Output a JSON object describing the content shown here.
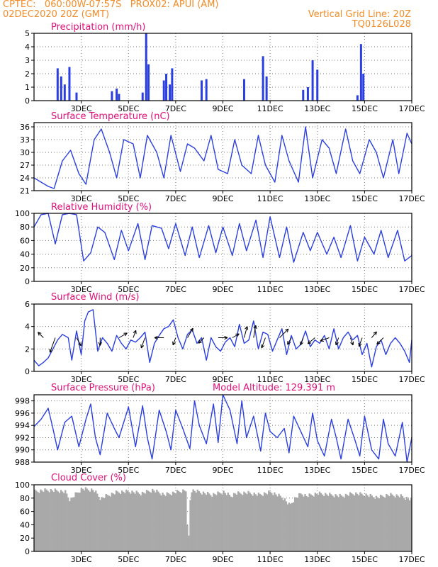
{
  "header": {
    "line1": "CPTEC:   060:00W-07:57S   PROX02: APUI (AM)",
    "line2": "02DEC2020 20Z (GMT)",
    "grid_note": "Vertical Grid Line: 20Z",
    "run_code": "TQ0126L028"
  },
  "colors": {
    "header": "#f28c28",
    "title": "#e0107a",
    "line": "#2b3fe0",
    "bar": "#2b3fe0",
    "cloud": "#a9a9a9",
    "frame": "#000000"
  },
  "x_ticks": [
    "3DEC",
    "5DEC",
    "7DEC",
    "9DEC",
    "11DEC",
    "13DEC",
    "15DEC",
    "17DEC"
  ],
  "chart_data": [
    {
      "type": "bar",
      "title": "Precipitation (mm/h)",
      "ylim": [
        0,
        5
      ],
      "yticks": [
        "0",
        "1",
        "2",
        "3",
        "4",
        "5"
      ],
      "x_days": [
        2.0,
        2.15,
        2.3,
        2.5,
        2.8,
        4.3,
        4.5,
        4.6,
        5.6,
        5.75,
        5.85,
        6.5,
        6.6,
        6.75,
        6.85,
        8.1,
        8.3,
        9.9,
        10.7,
        10.85,
        12.4,
        12.6,
        12.8,
        13.0,
        14.7,
        14.85,
        14.95
      ],
      "values": [
        2.4,
        1.8,
        1.2,
        2.5,
        0.6,
        0.7,
        0.9,
        0.5,
        0.6,
        5.0,
        2.7,
        1.5,
        2.0,
        1.2,
        2.4,
        1.5,
        1.6,
        1.6,
        3.3,
        1.8,
        0.8,
        1.0,
        3.0,
        2.3,
        0.4,
        4.2,
        2.0
      ]
    },
    {
      "type": "line",
      "title": "Surface Temperature (nC)",
      "ylim": [
        21,
        37
      ],
      "yticks": [
        "21",
        "24",
        "27",
        "30",
        "33",
        "36"
      ],
      "x_days": [
        1.0,
        1.3,
        1.6,
        1.85,
        2.2,
        2.55,
        2.9,
        3.2,
        3.55,
        3.85,
        4.2,
        4.5,
        4.8,
        5.2,
        5.5,
        5.8,
        6.2,
        6.5,
        6.8,
        7.2,
        7.5,
        7.8,
        8.2,
        8.5,
        8.8,
        9.2,
        9.5,
        9.8,
        10.2,
        10.5,
        10.8,
        11.2,
        11.5,
        11.8,
        12.2,
        12.5,
        12.8,
        13.2,
        13.5,
        13.8,
        14.2,
        14.5,
        14.8,
        15.2,
        15.5,
        15.8,
        16.2,
        16.45,
        16.8,
        17.0
      ],
      "values": [
        24,
        23,
        22,
        21.5,
        28,
        30.5,
        25,
        22.5,
        33,
        35.5,
        30,
        24,
        33,
        32,
        24,
        34,
        30,
        24,
        34,
        25.5,
        32,
        31,
        28,
        34,
        26,
        25,
        33,
        27,
        25,
        34,
        27,
        23,
        34,
        28,
        23,
        36,
        24,
        33,
        31,
        25,
        35.5,
        28,
        25,
        33,
        30,
        24,
        33,
        25,
        34.5,
        32
      ]
    },
    {
      "type": "line",
      "title": "Relative Humidity (%)",
      "ylim": [
        0,
        100
      ],
      "yticks": [
        "0",
        "20",
        "40",
        "60",
        "80",
        "100"
      ],
      "x_days": [
        1.0,
        1.3,
        1.6,
        1.9,
        2.2,
        2.5,
        2.8,
        3.1,
        3.4,
        3.7,
        4.0,
        4.4,
        4.7,
        5.0,
        5.4,
        5.7,
        6.0,
        6.4,
        6.7,
        7.0,
        7.4,
        7.7,
        8.0,
        8.4,
        8.7,
        9.0,
        9.4,
        9.7,
        10.0,
        10.4,
        10.7,
        11.0,
        11.4,
        11.7,
        12.0,
        12.4,
        12.7,
        13.0,
        13.4,
        13.7,
        14.0,
        14.4,
        14.7,
        15.0,
        15.4,
        15.7,
        16.0,
        16.4,
        16.7,
        17.0
      ],
      "values": [
        80,
        98,
        100,
        55,
        98,
        100,
        98,
        30,
        42,
        80,
        72,
        32,
        75,
        45,
        85,
        32,
        82,
        78,
        48,
        85,
        38,
        80,
        35,
        82,
        42,
        80,
        38,
        85,
        45,
        90,
        35,
        95,
        35,
        80,
        28,
        72,
        45,
        72,
        40,
        65,
        35,
        82,
        30,
        65,
        40,
        75,
        35,
        75,
        30,
        38
      ]
    },
    {
      "type": "line",
      "title": "Surface Wind (m/s)",
      "ylim": [
        0,
        6
      ],
      "yticks": [
        "0",
        "2",
        "4",
        "6"
      ],
      "x_days": [
        1.0,
        1.2,
        1.4,
        1.6,
        1.8,
        2.0,
        2.2,
        2.45,
        2.6,
        2.8,
        3.0,
        3.15,
        3.3,
        3.5,
        3.7,
        3.9,
        4.1,
        4.3,
        4.5,
        4.7,
        4.9,
        5.1,
        5.3,
        5.5,
        5.7,
        5.9,
        6.1,
        6.3,
        6.5,
        6.7,
        6.9,
        7.1,
        7.3,
        7.5,
        7.7,
        7.9,
        8.1,
        8.3,
        8.5,
        8.7,
        8.9,
        9.1,
        9.3,
        9.5,
        9.7,
        9.9,
        10.1,
        10.3,
        10.5,
        10.7,
        10.9,
        11.1,
        11.3,
        11.5,
        11.7,
        11.9,
        12.1,
        12.3,
        12.5,
        12.7,
        12.9,
        13.1,
        13.3,
        13.5,
        13.7,
        13.9,
        14.1,
        14.3,
        14.5,
        14.7,
        14.9,
        15.1,
        15.3,
        15.5,
        15.7,
        15.9,
        16.1,
        16.3,
        16.5,
        16.7,
        16.9,
        17.0
      ],
      "values": [
        1.0,
        0.5,
        0.8,
        1.2,
        2.0,
        2.8,
        3.3,
        3.0,
        1.0,
        3.6,
        1.5,
        4.5,
        5.3,
        5.5,
        1.8,
        3.0,
        2.5,
        1.8,
        3.2,
        2.5,
        2.0,
        2.8,
        2.6,
        3.0,
        3.5,
        0.8,
        2.5,
        3.2,
        3.8,
        4.0,
        4.6,
        3.0,
        2.0,
        3.3,
        3.7,
        2.5,
        3.0,
        1.0,
        3.0,
        2.2,
        1.8,
        2.6,
        3.0,
        2.2,
        4.2,
        2.5,
        2.8,
        4.5,
        2.0,
        3.5,
        3.3,
        1.8,
        2.8,
        3.8,
        1.5,
        3.2,
        2.0,
        2.4,
        3.6,
        2.2,
        2.8,
        2.5,
        3.2,
        2.0,
        3.8,
        2.0,
        3.0,
        3.5,
        2.8,
        3.2,
        1.5,
        2.5,
        0.4,
        2.2,
        2.8,
        1.5,
        2.5,
        3.0,
        2.5,
        1.8,
        0.8,
        2.8
      ],
      "arrow_x_days": [
        1.4,
        1.9,
        2.8,
        3.8,
        4.6,
        5.2,
        5.7,
        6.5,
        7.0,
        7.5,
        8.2,
        8.8,
        9.4,
        9.9,
        10.3,
        10.8,
        11.4,
        11.9,
        12.4,
        12.9,
        13.5,
        13.9,
        14.4,
        14.9,
        15.3,
        15.8
      ],
      "arrow_dir_deg": [
        315,
        200,
        150,
        180,
        60,
        20,
        200,
        270,
        200,
        30,
        225,
        90,
        60,
        15,
        10,
        200,
        45,
        210,
        200,
        230,
        250,
        200,
        160,
        200,
        40,
        225
      ],
      "arrow_len_ms": [
        1.0,
        2.0,
        1.2,
        1.0,
        1.2,
        1.0,
        1.4,
        1.2,
        1.0,
        1.4,
        1.0,
        1.2,
        1.0,
        1.5,
        1.6,
        1.4,
        1.6,
        1.0,
        1.0,
        1.2,
        1.2,
        1.0,
        1.0,
        1.2,
        1.0,
        1.2
      ]
    },
    {
      "type": "line",
      "title": "Surface Pressure (hPa)",
      "subtitle": "Model Altitude: 129.391 m",
      "ylim": [
        988,
        999
      ],
      "yticks": [
        "988",
        "990",
        "992",
        "994",
        "996",
        "998"
      ],
      "x_days": [
        1.0,
        1.3,
        1.6,
        1.8,
        2.0,
        2.3,
        2.6,
        2.9,
        3.2,
        3.4,
        3.6,
        3.8,
        4.1,
        4.4,
        4.6,
        4.8,
        5.0,
        5.3,
        5.6,
        5.8,
        6.0,
        6.3,
        6.6,
        6.8,
        7.0,
        7.3,
        7.6,
        7.8,
        8.0,
        8.3,
        8.6,
        8.8,
        9.0,
        9.3,
        9.6,
        9.8,
        10.0,
        10.3,
        10.6,
        10.8,
        11.0,
        11.3,
        11.6,
        11.8,
        12.0,
        12.3,
        12.6,
        12.8,
        13.0,
        13.3,
        13.6,
        13.8,
        14.0,
        14.3,
        14.6,
        14.8,
        15.0,
        15.3,
        15.6,
        15.8,
        16.0,
        16.3,
        16.6,
        16.8,
        17.0
      ],
      "values": [
        993.8,
        995.0,
        996.8,
        993.5,
        990.0,
        994.5,
        995.5,
        990.5,
        995.0,
        997.5,
        992.0,
        989.2,
        996.0,
        993.5,
        992.0,
        994.5,
        997.0,
        990.5,
        997.2,
        992.0,
        988.5,
        996.5,
        993.0,
        990.0,
        996.5,
        993.5,
        990.2,
        998.0,
        994.0,
        991.0,
        997.5,
        991.2,
        999.0,
        996.5,
        991.0,
        998.0,
        992.0,
        995.5,
        989.8,
        996.0,
        993.0,
        992.0,
        993.5,
        989.5,
        995.5,
        993.0,
        990.5,
        996.0,
        991.5,
        989.0,
        995.0,
        992.0,
        988.5,
        995.0,
        991.5,
        989.0,
        995.5,
        990.0,
        988.5,
        995.0,
        991.0,
        989.0,
        994.5,
        988.0,
        992.0
      ]
    },
    {
      "type": "area",
      "title": "Cloud Cover (%)",
      "ylim": [
        0,
        100
      ],
      "yticks": [
        "0",
        "20",
        "40",
        "60",
        "80",
        "100"
      ],
      "x_days": [
        1.0,
        1.5,
        2.0,
        2.3,
        2.5,
        2.7,
        3.0,
        3.5,
        3.8,
        4.0,
        4.5,
        5.0,
        5.5,
        6.0,
        6.5,
        7.0,
        7.4,
        7.5,
        7.6,
        8.0,
        8.5,
        9.0,
        9.3,
        9.5,
        10.0,
        10.5,
        11.0,
        11.5,
        11.8,
        12.0,
        12.3,
        12.5,
        13.0,
        13.5,
        14.0,
        14.5,
        15.0,
        15.5,
        16.0,
        16.5,
        17.0
      ],
      "values": [
        93,
        95,
        94,
        92,
        80,
        88,
        97,
        95,
        82,
        86,
        92,
        93,
        90,
        95,
        88,
        92,
        95,
        5,
        95,
        92,
        88,
        92,
        86,
        90,
        91,
        88,
        92,
        84,
        72,
        82,
        90,
        86,
        90,
        88,
        86,
        90,
        88,
        84,
        88,
        86,
        80
      ]
    }
  ]
}
